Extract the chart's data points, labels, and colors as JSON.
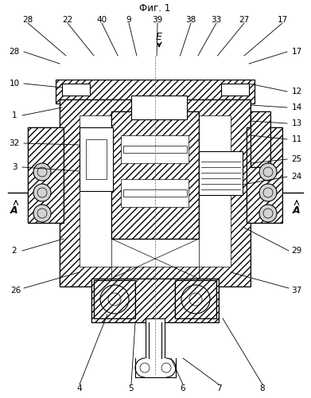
{
  "title": "Фиг. 1",
  "bg_color": "#ffffff",
  "line_color": "#000000",
  "hatch_color": "#000000",
  "labels": {
    "top": [
      "4",
      "5",
      "6",
      "7",
      "8"
    ],
    "left": [
      "26",
      "2",
      "A",
      "3",
      "32",
      "1",
      "10",
      "28"
    ],
    "right": [
      "37",
      "29",
      "A",
      "24",
      "25",
      "11",
      "13",
      "14",
      "12",
      "17"
    ],
    "bottom": [
      "28",
      "22",
      "40",
      "9",
      "39",
      "38",
      "33",
      "27",
      "17"
    ],
    "center": [
      "E"
    ]
  },
  "figsize": [
    3.91,
    5.0
  ],
  "dpi": 100
}
